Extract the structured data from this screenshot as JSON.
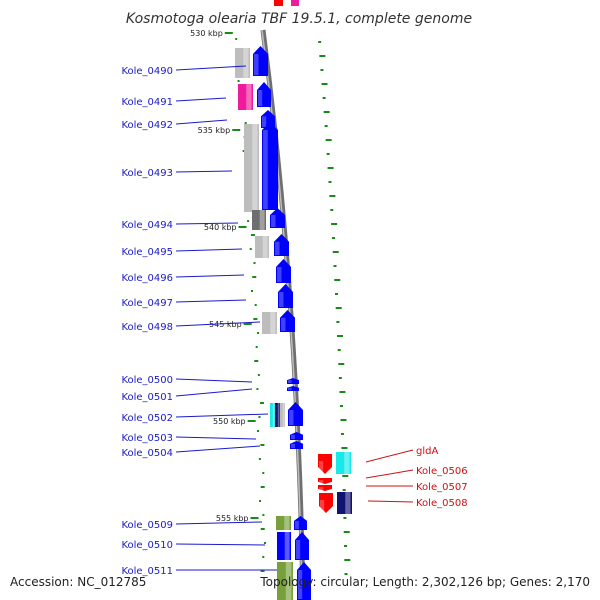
{
  "title": "Kosmotoga olearia TBF 19.5.1, complete genome",
  "footer": {
    "accession": "Accession: NC_012785",
    "summary": "Topology: circular; Length: 2,302,126 bp; Genes: 2,170"
  },
  "colors": {
    "backbone": "#8c8c8c",
    "forward_gene": "#0000ff",
    "reverse_gene": "#ff0000",
    "left_label": "#1a1acc",
    "right_label": "#cc1111",
    "gc_skew_tick": "#1a8a1a",
    "tick": "#1a8a1a",
    "cds_gray": "#bdbdbd",
    "cds_dark_gray": "#6e6e6e",
    "cds_magenta": "#ee1c9c",
    "cds_olive": "#77a03a",
    "cds_cyan": "#19e8e8",
    "cds_navy": "#121270"
  },
  "kbp_ticks": [
    "530 kbp",
    "535 kbp",
    "540 kbp",
    "545 kbp",
    "550 kbp",
    "555 kbp"
  ],
  "left_genes": [
    "Kole_0490",
    "Kole_0491",
    "Kole_0492",
    "Kole_0493",
    "Kole_0494",
    "Kole_0495",
    "Kole_0496",
    "Kole_0497",
    "Kole_0498",
    "Kole_0500",
    "Kole_0501",
    "Kole_0502",
    "Kole_0503",
    "Kole_0504",
    "Kole_0509",
    "Kole_0510",
    "Kole_0511"
  ],
  "right_genes": [
    "gldA",
    "Kole_0506",
    "Kole_0507",
    "Kole_0508"
  ]
}
